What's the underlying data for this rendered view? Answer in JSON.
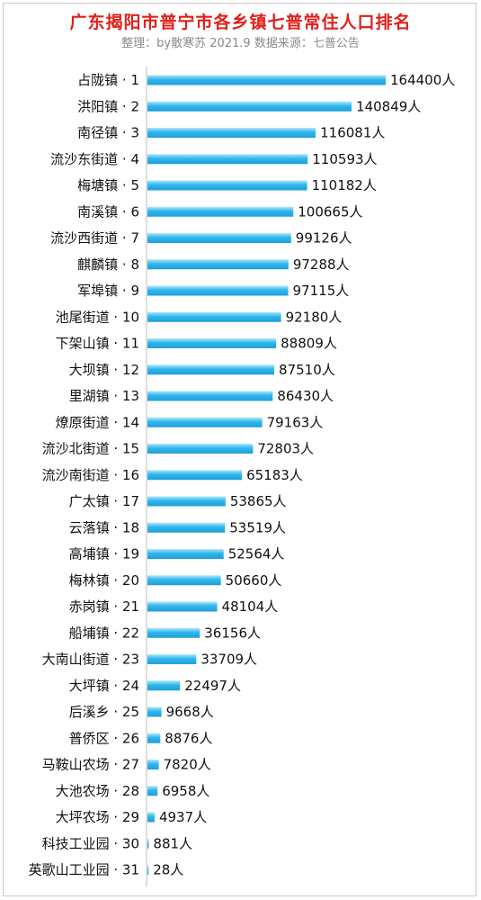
{
  "title": "广东揭阳市普宁市各乡镇七普常住人口排名",
  "subtitle": "整理：by散寒苏  2021.9  数据来源：七普公告",
  "colors": {
    "title": "#e0201a",
    "bar_light": "#aee7fb",
    "bar_mid": "#2fb6ec",
    "bar_dark": "#1ea0d8",
    "axis": "#bdbdbd"
  },
  "chart_data": {
    "type": "bar",
    "orientation": "horizontal",
    "value_suffix": "人",
    "categories": [
      "占陇镇 · 1",
      "洪阳镇 · 2",
      "南径镇 · 3",
      "流沙东街道 · 4",
      "梅塘镇 · 5",
      "南溪镇 · 6",
      "流沙西街道 · 7",
      "麒麟镇 · 8",
      "军埠镇 · 9",
      "池尾街道 · 10",
      "下架山镇 · 11",
      "大坝镇 · 12",
      "里湖镇 · 13",
      "燎原街道 · 14",
      "流沙北街道 · 15",
      "流沙南街道 · 16",
      "广太镇 · 17",
      "云落镇 · 18",
      "高埔镇 · 19",
      "梅林镇 · 20",
      "赤岗镇 · 21",
      "船埔镇 · 22",
      "大南山街道 · 23",
      "大坪镇 · 24",
      "后溪乡 · 25",
      "普侨区 · 26",
      "马鞍山农场 · 27",
      "大池农场 · 28",
      "大坪农场 · 29",
      "科技工业园 · 30",
      "英歌山工业园 · 31"
    ],
    "values": [
      164400,
      140849,
      116081,
      110593,
      110182,
      100665,
      99126,
      97288,
      97115,
      92180,
      88809,
      87510,
      86430,
      79163,
      72803,
      65183,
      53865,
      53519,
      52564,
      50660,
      48104,
      36156,
      33709,
      22497,
      9668,
      8876,
      7820,
      6958,
      4937,
      881,
      28
    ],
    "xlim": [
      0,
      164400
    ],
    "grid": false,
    "legend": "none"
  }
}
